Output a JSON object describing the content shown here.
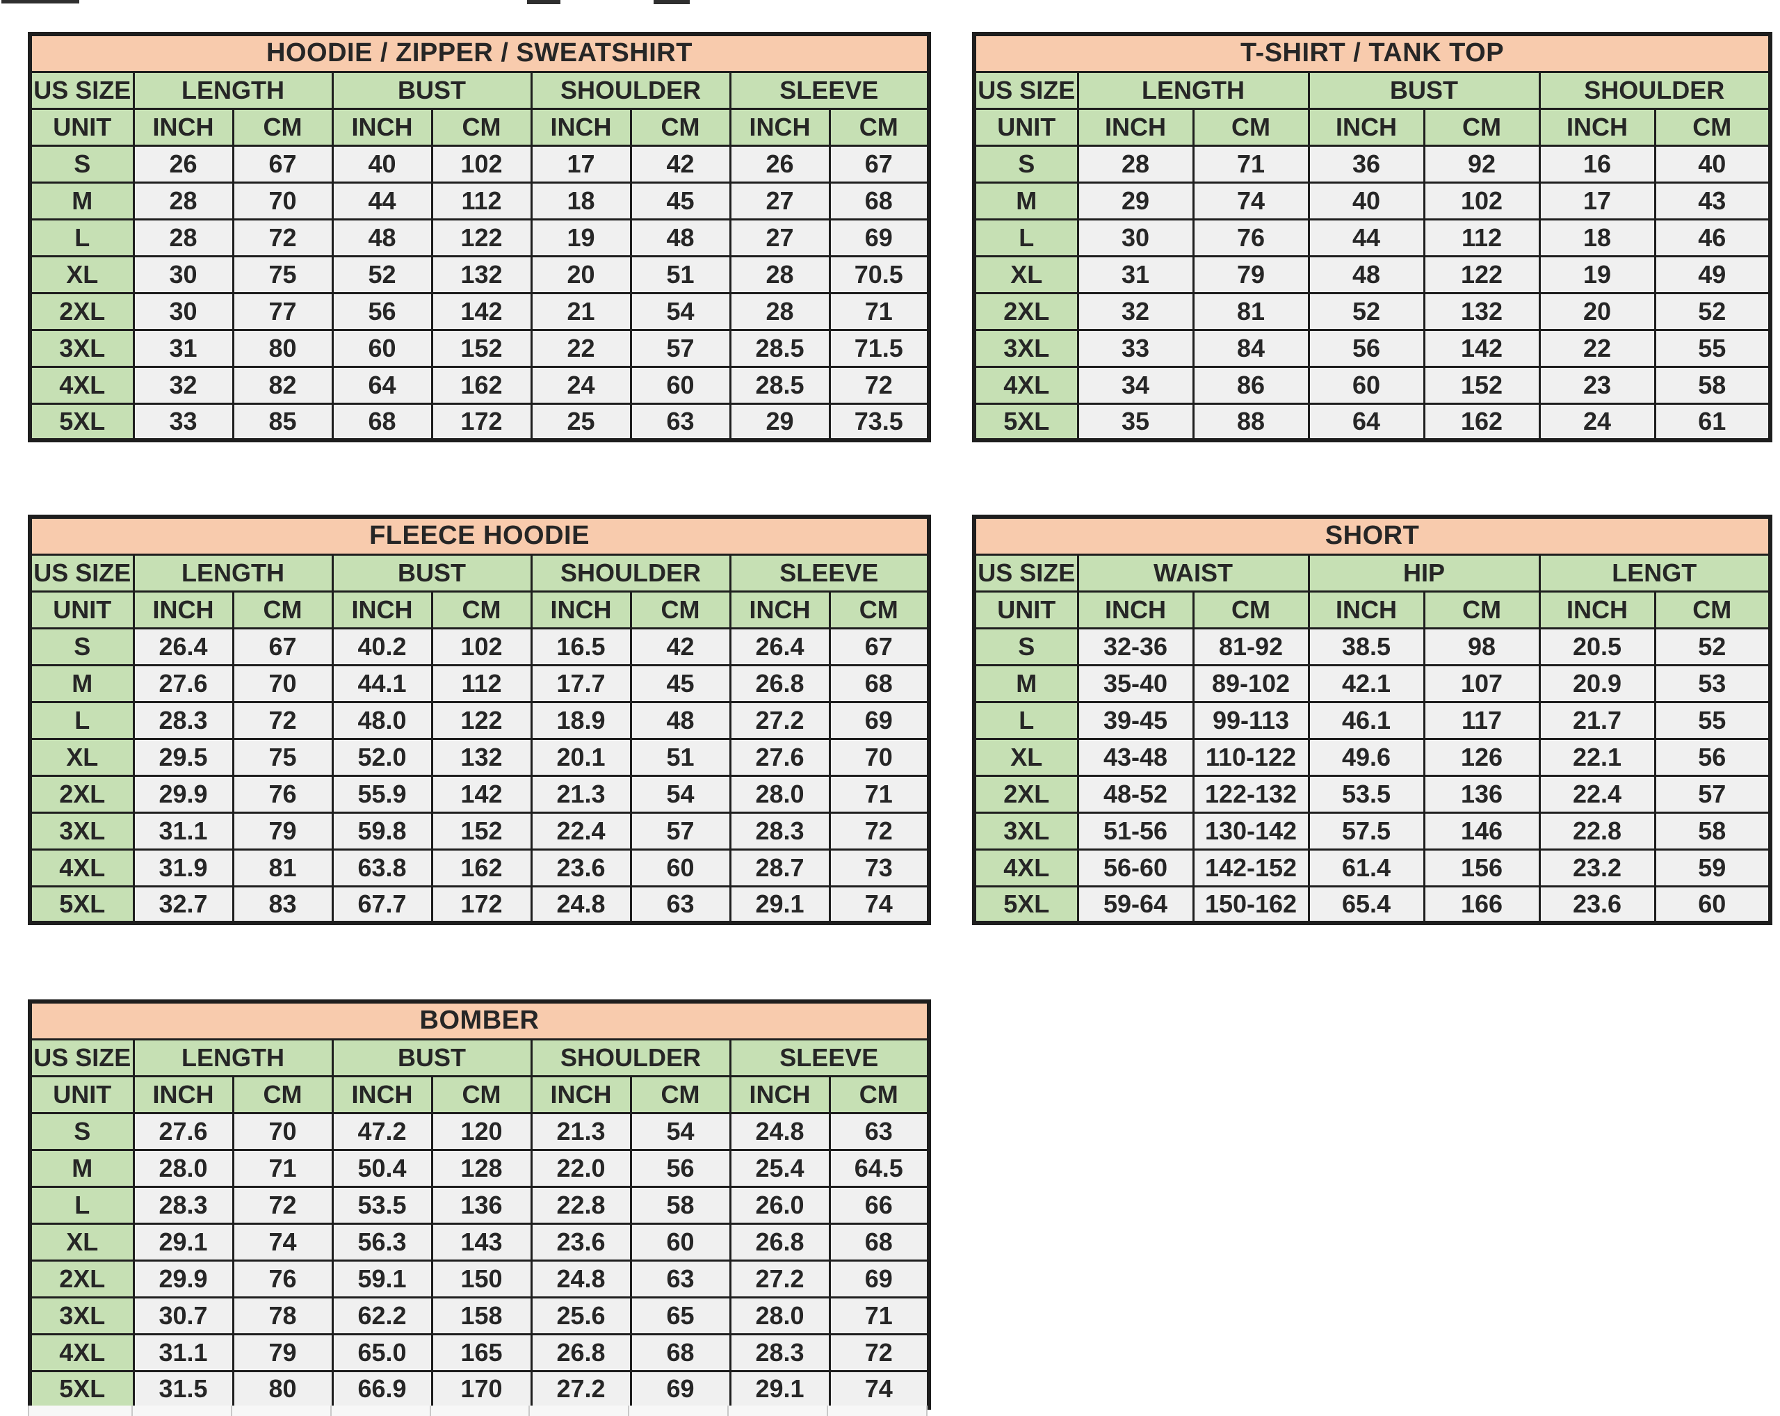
{
  "colors": {
    "title_bg": "#f8cbad",
    "header_bg": "#c6e0b4",
    "cell_bg": "#f0f0f0",
    "border": "#1e1e1e",
    "text": "#262626"
  },
  "tables": [
    {
      "id": "hoodie",
      "title": "HOODIE / ZIPPER / SWEATSHIRT",
      "size_col_header": "US SIZE",
      "unit_label": "UNIT",
      "groups": [
        {
          "label": "LENGTH",
          "units": [
            "INCH",
            "CM"
          ]
        },
        {
          "label": "BUST",
          "units": [
            "INCH",
            "CM"
          ]
        },
        {
          "label": "SHOULDER",
          "units": [
            "INCH",
            "CM"
          ]
        },
        {
          "label": "SLEEVE",
          "units": [
            "INCH",
            "CM"
          ]
        }
      ],
      "rows": [
        {
          "size": "S",
          "values": [
            "26",
            "67",
            "40",
            "102",
            "17",
            "42",
            "26",
            "67"
          ]
        },
        {
          "size": "M",
          "values": [
            "28",
            "70",
            "44",
            "112",
            "18",
            "45",
            "27",
            "68"
          ]
        },
        {
          "size": "L",
          "values": [
            "28",
            "72",
            "48",
            "122",
            "19",
            "48",
            "27",
            "69"
          ]
        },
        {
          "size": "XL",
          "values": [
            "30",
            "75",
            "52",
            "132",
            "20",
            "51",
            "28",
            "70.5"
          ]
        },
        {
          "size": "2XL",
          "values": [
            "30",
            "77",
            "56",
            "142",
            "21",
            "54",
            "28",
            "71"
          ]
        },
        {
          "size": "3XL",
          "values": [
            "31",
            "80",
            "60",
            "152",
            "22",
            "57",
            "28.5",
            "71.5"
          ]
        },
        {
          "size": "4XL",
          "values": [
            "32",
            "82",
            "64",
            "162",
            "24",
            "60",
            "28.5",
            "72"
          ]
        },
        {
          "size": "5XL",
          "values": [
            "33",
            "85",
            "68",
            "172",
            "25",
            "63",
            "29",
            "73.5"
          ]
        }
      ]
    },
    {
      "id": "tshirt",
      "title": "T-SHIRT / TANK TOP",
      "size_col_header": "US SIZE",
      "unit_label": "UNIT",
      "groups": [
        {
          "label": "LENGTH",
          "units": [
            "INCH",
            "CM"
          ]
        },
        {
          "label": "BUST",
          "units": [
            "INCH",
            "CM"
          ]
        },
        {
          "label": "SHOULDER",
          "units": [
            "INCH",
            "CM"
          ]
        }
      ],
      "rows": [
        {
          "size": "S",
          "values": [
            "28",
            "71",
            "36",
            "92",
            "16",
            "40"
          ]
        },
        {
          "size": "M",
          "values": [
            "29",
            "74",
            "40",
            "102",
            "17",
            "43"
          ]
        },
        {
          "size": "L",
          "values": [
            "30",
            "76",
            "44",
            "112",
            "18",
            "46"
          ]
        },
        {
          "size": "XL",
          "values": [
            "31",
            "79",
            "48",
            "122",
            "19",
            "49"
          ]
        },
        {
          "size": "2XL",
          "values": [
            "32",
            "81",
            "52",
            "132",
            "20",
            "52"
          ]
        },
        {
          "size": "3XL",
          "values": [
            "33",
            "84",
            "56",
            "142",
            "22",
            "55"
          ]
        },
        {
          "size": "4XL",
          "values": [
            "34",
            "86",
            "60",
            "152",
            "23",
            "58"
          ]
        },
        {
          "size": "5XL",
          "values": [
            "35",
            "88",
            "64",
            "162",
            "24",
            "61"
          ]
        }
      ]
    },
    {
      "id": "fleece",
      "title": "FLEECE HOODIE",
      "size_col_header": "US SIZE",
      "unit_label": "UNIT",
      "groups": [
        {
          "label": "LENGTH",
          "units": [
            "INCH",
            "CM"
          ]
        },
        {
          "label": "BUST",
          "units": [
            "INCH",
            "CM"
          ]
        },
        {
          "label": "SHOULDER",
          "units": [
            "INCH",
            "CM"
          ]
        },
        {
          "label": "SLEEVE",
          "units": [
            "INCH",
            "CM"
          ]
        }
      ],
      "rows": [
        {
          "size": "S",
          "values": [
            "26.4",
            "67",
            "40.2",
            "102",
            "16.5",
            "42",
            "26.4",
            "67"
          ]
        },
        {
          "size": "M",
          "values": [
            "27.6",
            "70",
            "44.1",
            "112",
            "17.7",
            "45",
            "26.8",
            "68"
          ]
        },
        {
          "size": "L",
          "values": [
            "28.3",
            "72",
            "48.0",
            "122",
            "18.9",
            "48",
            "27.2",
            "69"
          ]
        },
        {
          "size": "XL",
          "values": [
            "29.5",
            "75",
            "52.0",
            "132",
            "20.1",
            "51",
            "27.6",
            "70"
          ]
        },
        {
          "size": "2XL",
          "values": [
            "29.9",
            "76",
            "55.9",
            "142",
            "21.3",
            "54",
            "28.0",
            "71"
          ]
        },
        {
          "size": "3XL",
          "values": [
            "31.1",
            "79",
            "59.8",
            "152",
            "22.4",
            "57",
            "28.3",
            "72"
          ]
        },
        {
          "size": "4XL",
          "values": [
            "31.9",
            "81",
            "63.8",
            "162",
            "23.6",
            "60",
            "28.7",
            "73"
          ]
        },
        {
          "size": "5XL",
          "values": [
            "32.7",
            "83",
            "67.7",
            "172",
            "24.8",
            "63",
            "29.1",
            "74"
          ]
        }
      ]
    },
    {
      "id": "short",
      "title": "SHORT",
      "size_col_header": "US SIZE",
      "unit_label": "UNIT",
      "groups": [
        {
          "label": "WAIST",
          "units": [
            "INCH",
            "CM"
          ]
        },
        {
          "label": "HIP",
          "units": [
            "INCH",
            "CM"
          ]
        },
        {
          "label": "LENGT",
          "units": [
            "INCH",
            "CM"
          ]
        }
      ],
      "rows": [
        {
          "size": "S",
          "values": [
            "32-36",
            "81-92",
            "38.5",
            "98",
            "20.5",
            "52"
          ]
        },
        {
          "size": "M",
          "values": [
            "35-40",
            "89-102",
            "42.1",
            "107",
            "20.9",
            "53"
          ]
        },
        {
          "size": "L",
          "values": [
            "39-45",
            "99-113",
            "46.1",
            "117",
            "21.7",
            "55"
          ]
        },
        {
          "size": "XL",
          "values": [
            "43-48",
            "110-122",
            "49.6",
            "126",
            "22.1",
            "56"
          ]
        },
        {
          "size": "2XL",
          "values": [
            "48-52",
            "122-132",
            "53.5",
            "136",
            "22.4",
            "57"
          ]
        },
        {
          "size": "3XL",
          "values": [
            "51-56",
            "130-142",
            "57.5",
            "146",
            "22.8",
            "58"
          ]
        },
        {
          "size": "4XL",
          "values": [
            "56-60",
            "142-152",
            "61.4",
            "156",
            "23.2",
            "59"
          ]
        },
        {
          "size": "5XL",
          "values": [
            "59-64",
            "150-162",
            "65.4",
            "166",
            "23.6",
            "60"
          ]
        }
      ]
    },
    {
      "id": "bomber",
      "title": "BOMBER",
      "size_col_header": "US SIZE",
      "unit_label": "UNIT",
      "groups": [
        {
          "label": "LENGTH",
          "units": [
            "INCH",
            "CM"
          ]
        },
        {
          "label": "BUST",
          "units": [
            "INCH",
            "CM"
          ]
        },
        {
          "label": "SHOULDER",
          "units": [
            "INCH",
            "CM"
          ]
        },
        {
          "label": "SLEEVE",
          "units": [
            "INCH",
            "CM"
          ]
        }
      ],
      "rows": [
        {
          "size": "S",
          "values": [
            "27.6",
            "70",
            "47.2",
            "120",
            "21.3",
            "54",
            "24.8",
            "63"
          ]
        },
        {
          "size": "M",
          "values": [
            "28.0",
            "71",
            "50.4",
            "128",
            "22.0",
            "56",
            "25.4",
            "64.5"
          ]
        },
        {
          "size": "L",
          "values": [
            "28.3",
            "72",
            "53.5",
            "136",
            "22.8",
            "58",
            "26.0",
            "66"
          ]
        },
        {
          "size": "XL",
          "values": [
            "29.1",
            "74",
            "56.3",
            "143",
            "23.6",
            "60",
            "26.8",
            "68"
          ]
        },
        {
          "size": "2XL",
          "values": [
            "29.9",
            "76",
            "59.1",
            "150",
            "24.8",
            "63",
            "27.2",
            "69"
          ]
        },
        {
          "size": "3XL",
          "values": [
            "30.7",
            "78",
            "62.2",
            "158",
            "25.6",
            "65",
            "28.0",
            "71"
          ]
        },
        {
          "size": "4XL",
          "values": [
            "31.1",
            "79",
            "65.0",
            "165",
            "26.8",
            "68",
            "28.3",
            "72"
          ]
        },
        {
          "size": "5XL",
          "values": [
            "31.5",
            "80",
            "66.9",
            "170",
            "27.2",
            "69",
            "29.1",
            "74"
          ]
        }
      ]
    }
  ]
}
